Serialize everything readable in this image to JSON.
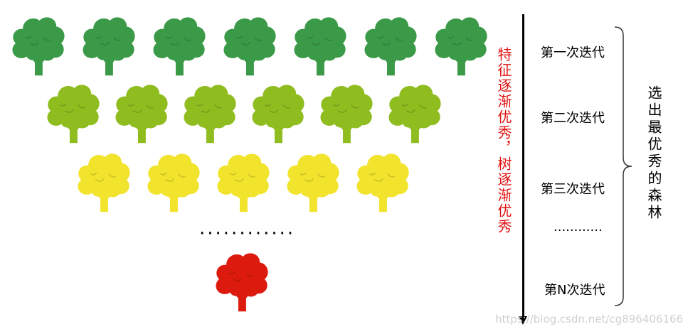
{
  "tree_rows": [
    {
      "color": "#3a9a48",
      "count": 7
    },
    {
      "color": "#8fbc1f",
      "count": 6
    },
    {
      "color": "#f2e42c",
      "count": 5
    },
    {
      "color": "#dd1a0e",
      "count": 1
    }
  ],
  "ellipsis_row": "············",
  "left_caption": "特征逐渐优秀，树逐渐优秀",
  "iterations": [
    "第一次迭代",
    "第二次迭代",
    "第三次迭代",
    "············",
    "第N次迭代"
  ],
  "result_caption": "选出最优秀的森林",
  "watermark": "https://blog.csdn.net/cg896406166"
}
